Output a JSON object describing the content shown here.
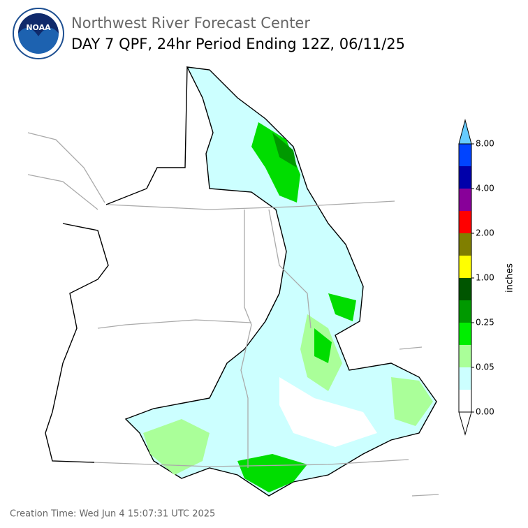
{
  "header": {
    "title": "Northwest River Forecast Center",
    "subtitle": "DAY 7 QPF, 24hr Period Ending 12Z, 06/11/25"
  },
  "colorbar": {
    "label": "inches",
    "colors": [
      "#ffffff",
      "#ccffff",
      "#aaff99",
      "#00ee00",
      "#009900",
      "#005500",
      "#ffff00",
      "#807f00",
      "#ff0000",
      "#880099",
      "#0000aa",
      "#0044ff",
      "#66ccff"
    ],
    "ticks": [
      {
        "value": 0,
        "label": "0.00"
      },
      {
        "value": 0.05,
        "label": "0.05"
      },
      {
        "value": 0.25,
        "label": "0.25"
      },
      {
        "value": 1,
        "label": "1.00"
      },
      {
        "value": 2,
        "label": "2.00"
      },
      {
        "value": 4,
        "label": "4.00"
      },
      {
        "value": 8,
        "label": "8.00"
      }
    ]
  },
  "footer": {
    "creation_time": "Creation Time: Wed Jun 4 15:07:31 UTC 2025"
  }
}
